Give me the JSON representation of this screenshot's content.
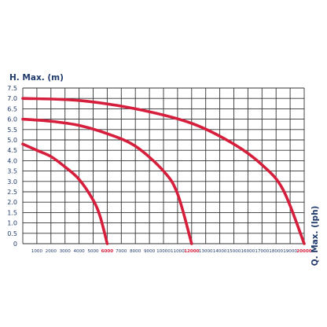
{
  "chart_data": {
    "type": "line",
    "ylabel": "H. Max. (m)",
    "xlabel": "Q. Max. (lph)",
    "xlim": [
      0,
      20000
    ],
    "ylim": [
      0,
      7.5
    ],
    "x_ticks": [
      1000,
      2000,
      3000,
      4000,
      5000,
      6000,
      7000,
      8000,
      9000,
      10000,
      11000,
      12000,
      13000,
      14000,
      15000,
      16000,
      17000,
      18000,
      19000,
      20000
    ],
    "x_tick_labels": [
      "1000",
      "2000",
      "3000",
      "4000",
      "5000",
      "6000",
      "7000",
      "8000",
      "9000",
      "10000",
      "11000",
      "12000",
      "13000",
      "14000",
      "15000",
      "16000",
      "17000",
      "18000",
      "19000",
      "20000"
    ],
    "highlighted_x_ticks": [
      "6000",
      "12000",
      "20000"
    ],
    "y_ticks": [
      0,
      0.5,
      1.0,
      1.5,
      2.0,
      2.5,
      3.0,
      3.5,
      4.0,
      4.5,
      5.0,
      5.5,
      6.0,
      6.5,
      7.0,
      7.5
    ],
    "y_tick_labels": [
      "0",
      "0.5",
      "1.0",
      "1.5",
      "2.0",
      "2.5",
      "3.0",
      "3.5",
      "4.0",
      "4.5",
      "5.0",
      "5.5",
      "6.0",
      "6.5",
      "7.0",
      "7.5"
    ],
    "grid": true,
    "series": [
      {
        "x": [
          0,
          1000,
          2000,
          3000,
          4000,
          5000,
          5500,
          6000
        ],
        "y": [
          4.8,
          4.5,
          4.2,
          3.7,
          3.1,
          2.1,
          1.3,
          0
        ]
      },
      {
        "x": [
          0,
          2000,
          4000,
          6000,
          8000,
          10000,
          11000,
          12000
        ],
        "y": [
          6.0,
          5.9,
          5.7,
          5.3,
          4.7,
          3.5,
          2.4,
          0
        ]
      },
      {
        "x": [
          0,
          4000,
          8000,
          12000,
          15000,
          17000,
          18500,
          20000
        ],
        "y": [
          7.0,
          6.9,
          6.5,
          5.8,
          4.8,
          3.8,
          2.6,
          0
        ]
      }
    ],
    "colors": {
      "curve": "#d61f3c",
      "text": "#1f3a6b",
      "grid": "#333333"
    }
  }
}
